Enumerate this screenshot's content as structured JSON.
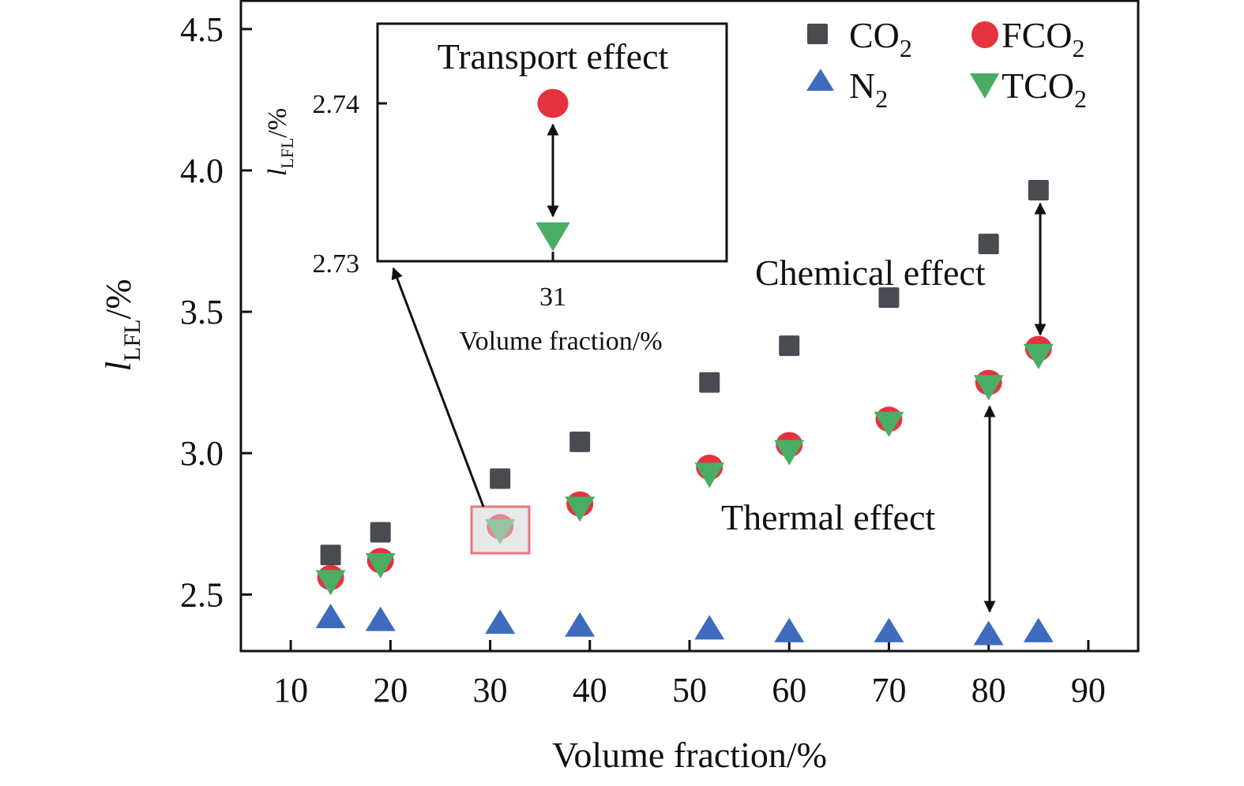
{
  "chart_data": {
    "type": "scatter",
    "xlabel": "Volume fraction/%",
    "ylabel": {
      "main": "l",
      "sub": "LFL",
      "tail": "/%"
    },
    "xlim": [
      5,
      95
    ],
    "ylim": [
      2.3,
      4.6
    ],
    "x_ticks": [
      "10",
      "20",
      "30",
      "40",
      "50",
      "60",
      "70",
      "80",
      "90"
    ],
    "y_ticks": [
      "2.5",
      "3.0",
      "3.5",
      "4.0",
      "4.5"
    ],
    "grid": false,
    "legend_position": "top-right",
    "series": [
      {
        "name": "CO2",
        "label_main": "CO",
        "label_sub": "2",
        "marker": "square",
        "color": "#484b50",
        "x": [
          14,
          19,
          31,
          39,
          52,
          60,
          70,
          80,
          85
        ],
        "y": [
          2.64,
          2.72,
          2.91,
          3.04,
          3.25,
          3.38,
          3.55,
          3.74,
          3.93
        ]
      },
      {
        "name": "FCO2",
        "label_main": "FCO",
        "label_sub": "2",
        "marker": "circle",
        "color": "#e5323f",
        "x": [
          14,
          19,
          31,
          39,
          52,
          60,
          70,
          80,
          85
        ],
        "y": [
          2.56,
          2.62,
          2.74,
          2.82,
          2.95,
          3.03,
          3.12,
          3.25,
          3.37
        ]
      },
      {
        "name": "N2",
        "label_main": "N",
        "label_sub": "2",
        "marker": "triangle-up",
        "color": "#3f6bbf",
        "x": [
          14,
          19,
          31,
          39,
          52,
          60,
          70,
          80,
          85
        ],
        "y": [
          2.42,
          2.41,
          2.4,
          2.39,
          2.38,
          2.37,
          2.37,
          2.36,
          2.37
        ]
      },
      {
        "name": "TCO2",
        "label_main": "TCO",
        "label_sub": "2",
        "marker": "triangle-down",
        "color": "#4aad66",
        "x": [
          14,
          19,
          31,
          39,
          52,
          60,
          70,
          80,
          85
        ],
        "y": [
          2.55,
          2.61,
          2.73,
          2.81,
          2.93,
          3.01,
          3.11,
          3.24,
          3.35
        ]
      }
    ],
    "annotations": {
      "chemical": "Chemical effect",
      "thermal": "Thermal effect"
    },
    "inset": {
      "title": "Transport effect",
      "xlabel": "Volume fraction/%",
      "ylabel": {
        "main": "l",
        "sub": "LFL",
        "tail": "/%"
      },
      "x_ticks": [
        "31"
      ],
      "y_ticks": [
        "2.74",
        "2.73"
      ],
      "ylim": [
        2.73,
        2.7415
      ],
      "points": [
        {
          "series": "FCO2",
          "x": 31,
          "y": 2.74
        },
        {
          "series": "TCO2",
          "x": 31,
          "y": 2.7318
        }
      ]
    }
  }
}
